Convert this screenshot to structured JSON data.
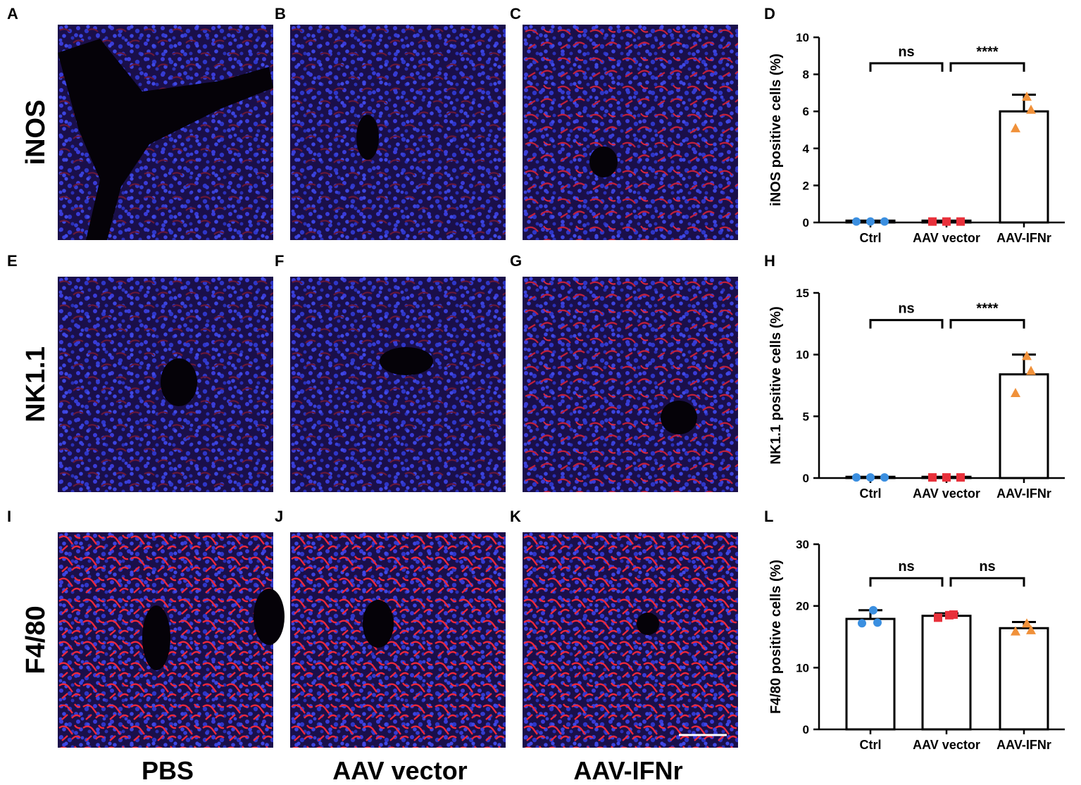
{
  "panels": {
    "row_labels": [
      "iNOS",
      "NK1.1",
      "F4/80"
    ],
    "column_labels": [
      "PBS",
      "AAV vector",
      "AAV-IFNr"
    ],
    "image_letters": [
      [
        "A",
        "B",
        "C"
      ],
      [
        "E",
        "F",
        "G"
      ],
      [
        "I",
        "J",
        "K"
      ]
    ],
    "chart_letters": [
      "D",
      "H",
      "L"
    ]
  },
  "chart_data": [
    {
      "type": "bar",
      "categories": [
        "Ctrl",
        "AAV vector",
        "AAV-IFNr"
      ],
      "ylabel": "iNOS positive cells (%)",
      "ylim": [
        0,
        10
      ],
      "yticks": [
        0,
        2,
        4,
        6,
        8,
        10
      ],
      "values": [
        0.1,
        0.1,
        6.0
      ],
      "error": [
        0,
        0,
        0.9
      ],
      "points": [
        [
          0.05,
          0.05,
          0.05
        ],
        [
          0.05,
          0.05,
          0.05
        ],
        [
          5.1,
          6.1,
          6.8
        ]
      ],
      "point_colors": [
        "#3b8fe0",
        "#e8313b",
        "#f0913a"
      ],
      "point_shapes": [
        "circle",
        "square",
        "triangle"
      ],
      "significance": [
        {
          "from": 0,
          "to": 1,
          "label": "ns",
          "y": 8.6
        },
        {
          "from": 1,
          "to": 2,
          "label": "****",
          "y": 8.6
        }
      ]
    },
    {
      "type": "bar",
      "categories": [
        "Ctrl",
        "AAV vector",
        "AAV-IFNr"
      ],
      "ylabel": "NK1.1 positive cells (%)",
      "ylim": [
        0,
        15
      ],
      "yticks": [
        0,
        5,
        10,
        15
      ],
      "values": [
        0.1,
        0.1,
        8.4
      ],
      "error": [
        0,
        0,
        1.6
      ],
      "points": [
        [
          0.05,
          0.05,
          0.05
        ],
        [
          0.05,
          0.05,
          0.05
        ],
        [
          6.9,
          8.7,
          9.9
        ]
      ],
      "point_colors": [
        "#3b8fe0",
        "#e8313b",
        "#f0913a"
      ],
      "point_shapes": [
        "circle",
        "square",
        "triangle"
      ],
      "significance": [
        {
          "from": 0,
          "to": 1,
          "label": "ns",
          "y": 12.8
        },
        {
          "from": 1,
          "to": 2,
          "label": "****",
          "y": 12.8
        }
      ]
    },
    {
      "type": "bar",
      "categories": [
        "Ctrl",
        "AAV vector",
        "AAV-IFNr"
      ],
      "ylabel": "F4/80 positive cells (%)",
      "ylim": [
        0,
        30
      ],
      "yticks": [
        0,
        10,
        20,
        30
      ],
      "values": [
        17.9,
        18.4,
        16.4
      ],
      "error": [
        1.4,
        0.4,
        1.0
      ],
      "points": [
        [
          17.2,
          17.3,
          19.3
        ],
        [
          18.1,
          18.6,
          18.5
        ],
        [
          15.9,
          16.1,
          17.2
        ]
      ],
      "point_colors": [
        "#3b8fe0",
        "#e8313b",
        "#f0913a"
      ],
      "point_shapes": [
        "circle",
        "square",
        "triangle"
      ],
      "significance": [
        {
          "from": 0,
          "to": 1,
          "label": "ns",
          "y": 24.5
        },
        {
          "from": 1,
          "to": 2,
          "label": "ns",
          "y": 24.5
        }
      ]
    }
  ]
}
